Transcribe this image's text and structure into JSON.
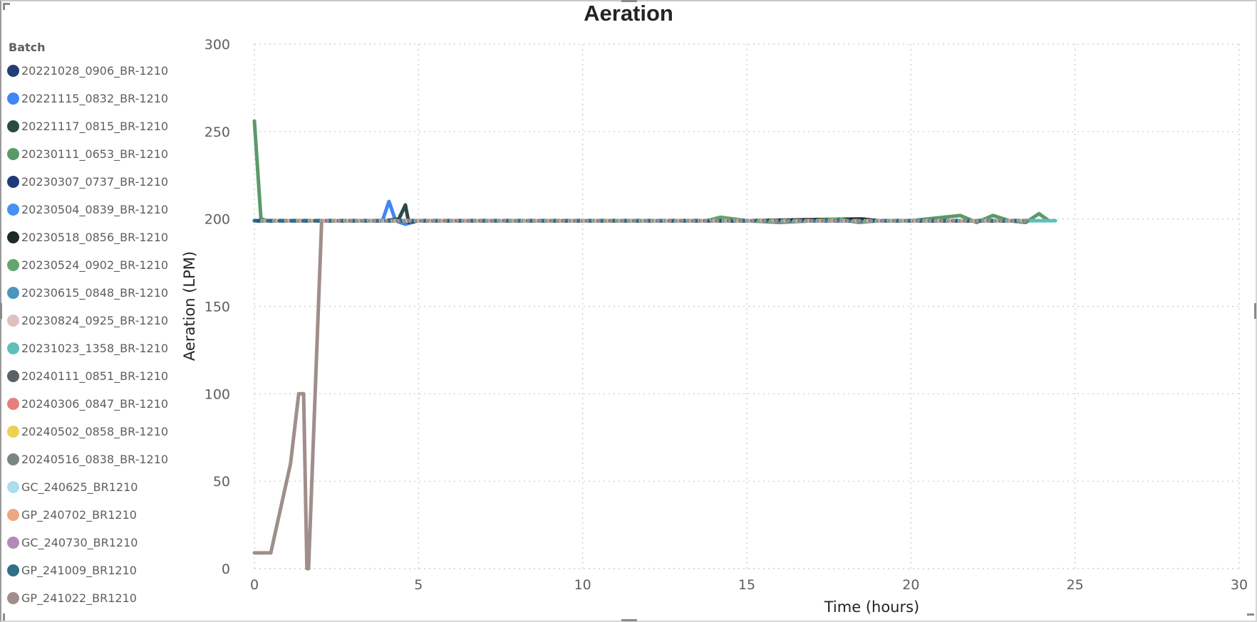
{
  "chart_data": {
    "type": "line",
    "title": "Aeration",
    "xlabel": "Time (hours)",
    "ylabel": "Aeration (LPM)",
    "xlim": [
      0,
      30
    ],
    "ylim": [
      0,
      300
    ],
    "xticks": [
      0,
      5,
      10,
      15,
      20,
      25,
      30
    ],
    "yticks": [
      0,
      50,
      100,
      150,
      200,
      250,
      300
    ],
    "grid": true,
    "legend_title": "Batch",
    "legend_position": "left",
    "series": [
      {
        "name": "20221028_0906_BR-1210",
        "color": "#233E73",
        "x": [
          0,
          4,
          8,
          12,
          16,
          20,
          23.5
        ],
        "y": [
          199,
          199,
          199,
          199,
          199,
          199,
          199
        ]
      },
      {
        "name": "20221115_0832_BR-1210",
        "color": "#4285F4",
        "x": [
          0,
          3.9,
          4.1,
          4.3,
          4.6,
          5,
          10,
          15,
          20,
          23.6
        ],
        "y": [
          199,
          199,
          210,
          199,
          197,
          199,
          199,
          199,
          199,
          199
        ]
      },
      {
        "name": "20221117_0815_BR-1210",
        "color": "#2A4A45",
        "x": [
          0,
          4,
          4.4,
          4.6,
          4.7,
          5,
          10,
          15,
          20,
          23.5
        ],
        "y": [
          199,
          199,
          200,
          208,
          198,
          199,
          199,
          199,
          199,
          199
        ]
      },
      {
        "name": "20230111_0653_BR-1210",
        "color": "#5A9A6A",
        "x": [
          0,
          0.2,
          0.4,
          2,
          5,
          8,
          12,
          15,
          18,
          20,
          21.5,
          22,
          22.5,
          23,
          23.5,
          23.9,
          24.2
        ],
        "y": [
          256,
          200,
          199,
          199,
          199,
          199,
          199,
          199,
          199,
          199,
          202,
          198,
          202,
          199,
          198,
          203,
          199
        ]
      },
      {
        "name": "20230307_0737_BR-1210",
        "color": "#1F3A7A",
        "x": [
          0,
          5,
          10,
          15,
          20,
          23.5
        ],
        "y": [
          199,
          199,
          199,
          199,
          199,
          199
        ]
      },
      {
        "name": "20230504_0839_BR-1210",
        "color": "#4A90F0",
        "x": [
          0,
          5,
          10,
          15,
          20,
          23.5
        ],
        "y": [
          199,
          199,
          199,
          199,
          199,
          199
        ]
      },
      {
        "name": "20230518_0856_BR-1210",
        "color": "#1D2B24",
        "x": [
          0,
          5,
          10,
          15,
          18.5,
          19,
          20,
          23.6
        ],
        "y": [
          199,
          199,
          199,
          199,
          200,
          199,
          199,
          199
        ]
      },
      {
        "name": "20230524_0902_BR-1210",
        "color": "#63A56E",
        "x": [
          0,
          5,
          10,
          13.8,
          14.2,
          15,
          16,
          17,
          17.8,
          18.4,
          19,
          20,
          22,
          23.5
        ],
        "y": [
          199,
          199,
          199,
          199,
          201,
          199,
          198,
          199,
          200,
          198,
          199,
          199,
          199,
          199
        ]
      },
      {
        "name": "20230615_0848_BR-1210",
        "color": "#4C95BF",
        "x": [
          0,
          5,
          10,
          15,
          20,
          23.5
        ],
        "y": [
          199,
          199,
          199,
          199,
          199,
          199
        ]
      },
      {
        "name": "20230824_0925_BR-1210",
        "color": "#DFC0C0",
        "x": [
          0,
          5,
          10,
          15,
          20,
          23.5
        ],
        "y": [
          199,
          199,
          199,
          199,
          199,
          199
        ]
      },
      {
        "name": "20231023_1358_BR-1210",
        "color": "#5EC0B8",
        "x": [
          0,
          5,
          10,
          15,
          20,
          24.4
        ],
        "y": [
          199,
          199,
          199,
          199,
          199,
          199
        ]
      },
      {
        "name": "20240111_0851_BR-1210",
        "color": "#5B6266",
        "x": [
          0,
          5,
          10,
          15,
          20,
          23.5
        ],
        "y": [
          199,
          199,
          199,
          199,
          199,
          199
        ]
      },
      {
        "name": "20240306_0847_BR-1210",
        "color": "#E87E7E",
        "x": [
          0,
          5,
          10,
          15,
          20,
          23.5
        ],
        "y": [
          199,
          199,
          199,
          199,
          199,
          199
        ]
      },
      {
        "name": "20240502_0858_BR-1210",
        "color": "#EDD156",
        "x": [
          0,
          5,
          10,
          15,
          20,
          23.5
        ],
        "y": [
          199,
          199,
          199,
          199,
          199,
          199
        ]
      },
      {
        "name": "20240516_0838_BR-1210",
        "color": "#7A8585",
        "x": [
          0,
          5,
          10,
          15,
          20,
          23.5
        ],
        "y": [
          199,
          199,
          199,
          199,
          199,
          199
        ]
      },
      {
        "name": "GC_240625_BR1210",
        "color": "#ADDCEE",
        "x": [
          0,
          5,
          10,
          15,
          20,
          23.5
        ],
        "y": [
          199,
          199,
          199,
          199,
          199,
          199
        ]
      },
      {
        "name": "GP_240702_BR1210",
        "color": "#EFA682",
        "x": [
          0,
          5,
          10,
          15,
          20,
          23.5
        ],
        "y": [
          199,
          199,
          199,
          199,
          199,
          199
        ]
      },
      {
        "name": "GC_240730_BR1210",
        "color": "#B18BB8",
        "x": [
          0,
          5,
          10,
          15,
          20,
          23.5
        ],
        "y": [
          199,
          199,
          199,
          199,
          199,
          199
        ]
      },
      {
        "name": "GP_241009_BR1210",
        "color": "#2F6F87",
        "x": [
          0,
          5,
          10,
          15,
          20,
          23.5
        ],
        "y": [
          199,
          199,
          199,
          199,
          199,
          199
        ]
      },
      {
        "name": "GP_241022_BR1210",
        "color": "#A08E8A",
        "x": [
          0,
          0.5,
          1.1,
          1.35,
          1.5,
          1.6,
          1.65,
          2.05,
          2.5,
          5,
          8,
          12,
          16,
          20,
          23.5
        ],
        "y": [
          9,
          9,
          60,
          100,
          100,
          0,
          0,
          199,
          199,
          199,
          199,
          199,
          199,
          199,
          199
        ]
      }
    ]
  }
}
